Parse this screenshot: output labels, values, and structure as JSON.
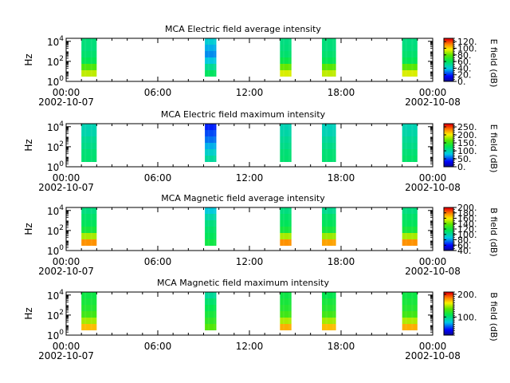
{
  "chart_data": [
    {
      "type": "heatmap",
      "title": "MCA  Electric field average intensity",
      "ylabel": "Hz",
      "y_scale": "log",
      "ylim": [
        1,
        20000
      ],
      "yticks": [
        {
          "base": "10",
          "exp": "0"
        },
        {
          "base": "10",
          "exp": "2"
        },
        {
          "base": "10",
          "exp": "4"
        }
      ],
      "xlim": [
        "2002-10-07T00:00",
        "2002-10-08T00:00"
      ],
      "xticks": [
        "00:00",
        "06:00",
        "12:00",
        "18:00",
        "00:00"
      ],
      "x_date_labels": [
        "2002-10-07",
        "2002-10-08"
      ],
      "colorbar": {
        "label": "E field (dB)",
        "range": [
          0,
          130
        ],
        "ticks": [
          "0.",
          "20.",
          "40.",
          "60.",
          "80.",
          "100.",
          "120."
        ]
      },
      "segments": [
        {
          "start": "01:00",
          "end": "02:00",
          "values": [
            92,
            78,
            62,
            58,
            56,
            56
          ]
        },
        {
          "start": "09:05",
          "end": "09:50",
          "values": [
            60,
            52,
            40,
            32,
            36,
            42
          ]
        },
        {
          "start": "14:00",
          "end": "14:45",
          "values": [
            95,
            82,
            64,
            58,
            56,
            55
          ]
        },
        {
          "start": "16:45",
          "end": "17:40",
          "values": [
            92,
            80,
            62,
            58,
            56,
            56
          ]
        },
        {
          "start": "22:00",
          "end": "23:00",
          "values": [
            95,
            80,
            62,
            58,
            56,
            55
          ]
        }
      ]
    },
    {
      "type": "heatmap",
      "title": "MCA  Electric field maximum intensity",
      "ylabel": "Hz",
      "y_scale": "log",
      "ylim": [
        1,
        20000
      ],
      "yticks": [
        {
          "base": "10",
          "exp": "0"
        },
        {
          "base": "10",
          "exp": "2"
        },
        {
          "base": "10",
          "exp": "4"
        }
      ],
      "xlim": [
        "2002-10-07T00:00",
        "2002-10-08T00:00"
      ],
      "xticks": [
        "00:00",
        "06:00",
        "12:00",
        "18:00",
        "00:00"
      ],
      "x_date_labels": [
        "2002-10-07",
        "2002-10-08"
      ],
      "colorbar": {
        "label": "E field (dB)",
        "range": [
          0,
          270
        ],
        "ticks": [
          "0.",
          "50.",
          "100.",
          "150.",
          "200.",
          "250."
        ]
      },
      "segments": [
        {
          "start": "01:00",
          "end": "02:00",
          "values": [
            120,
            118,
            112,
            108,
            100,
            98
          ]
        },
        {
          "start": "09:05",
          "end": "09:50",
          "values": [
            105,
            90,
            75,
            60,
            50,
            40
          ]
        },
        {
          "start": "14:00",
          "end": "14:45",
          "values": [
            120,
            118,
            112,
            108,
            102,
            98
          ]
        },
        {
          "start": "16:45",
          "end": "17:40",
          "values": [
            120,
            118,
            112,
            106,
            98,
            95
          ]
        },
        {
          "start": "22:00",
          "end": "23:00",
          "values": [
            122,
            118,
            112,
            108,
            102,
            98
          ]
        }
      ]
    },
    {
      "type": "heatmap",
      "title": "MCA  Magnetic field average intensity",
      "ylabel": "Hz",
      "y_scale": "log",
      "ylim": [
        1,
        20000
      ],
      "yticks": [
        {
          "base": "10",
          "exp": "0"
        },
        {
          "base": "10",
          "exp": "2"
        },
        {
          "base": "10",
          "exp": "4"
        }
      ],
      "xlim": [
        "2002-10-07T00:00",
        "2002-10-08T00:00"
      ],
      "xticks": [
        "00:00",
        "06:00",
        "12:00",
        "18:00",
        "00:00"
      ],
      "x_date_labels": [
        "2002-10-07",
        "2002-10-08"
      ],
      "colorbar": {
        "label": "B field (dB)",
        "range": [
          40,
          200
        ],
        "ticks": [
          "40.",
          "60.",
          "80.",
          "100.",
          "120.",
          "140.",
          "160.",
          "180.",
          "200."
        ]
      },
      "segments": [
        {
          "start": "01:00",
          "end": "02:00",
          "values": [
            178,
            150,
            122,
            115,
            112,
            108
          ]
        },
        {
          "start": "09:05",
          "end": "09:50",
          "values": [
            120,
            115,
            112,
            108,
            100,
            90
          ]
        },
        {
          "start": "14:00",
          "end": "14:45",
          "values": [
            178,
            150,
            122,
            115,
            112,
            108
          ]
        },
        {
          "start": "16:45",
          "end": "17:40",
          "values": [
            175,
            148,
            122,
            115,
            112,
            105
          ]
        },
        {
          "start": "22:00",
          "end": "23:00",
          "values": [
            178,
            150,
            122,
            115,
            112,
            108
          ]
        }
      ]
    },
    {
      "type": "heatmap",
      "title": "MCA  Magnetic field maximum intensity",
      "ylabel": "Hz",
      "y_scale": "log",
      "ylim": [
        1,
        20000
      ],
      "yticks": [
        {
          "base": "10",
          "exp": "0"
        },
        {
          "base": "10",
          "exp": "2"
        },
        {
          "base": "10",
          "exp": "4"
        }
      ],
      "xlim": [
        "2002-10-07T00:00",
        "2002-10-08T00:00"
      ],
      "xticks": [
        "00:00",
        "06:00",
        "12:00",
        "18:00",
        "00:00"
      ],
      "x_date_labels": [
        "2002-10-07",
        "2002-10-08"
      ],
      "colorbar": {
        "label": "B field (dB)",
        "range": [
          20,
          210
        ],
        "ticks": [
          "100.",
          "200."
        ]
      },
      "segments": [
        {
          "start": "01:00",
          "end": "02:00",
          "values": [
            175,
            150,
            130,
            122,
            118,
            115
          ]
        },
        {
          "start": "09:05",
          "end": "09:50",
          "values": [
            135,
            125,
            118,
            112,
            105,
            95
          ]
        },
        {
          "start": "14:00",
          "end": "14:45",
          "values": [
            178,
            152,
            130,
            122,
            118,
            115
          ]
        },
        {
          "start": "16:45",
          "end": "17:40",
          "values": [
            175,
            150,
            130,
            122,
            118,
            112
          ]
        },
        {
          "start": "22:00",
          "end": "23:00",
          "values": [
            178,
            152,
            130,
            122,
            118,
            115
          ]
        }
      ]
    }
  ]
}
